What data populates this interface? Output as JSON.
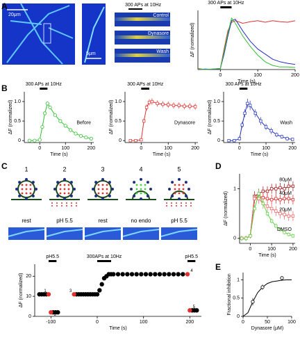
{
  "figure": {
    "panel_labels": [
      "A",
      "B",
      "C",
      "D",
      "E"
    ],
    "scale_bars": [
      "20μm",
      "5μm"
    ],
    "kymograph_stimulus": "300 APs at 10Hz",
    "kymograph_labels": [
      "Control",
      "Dynasore",
      "Wash"
    ],
    "diagram_steps": [
      {
        "number": "1",
        "label": "rest"
      },
      {
        "number": "2",
        "label": "pH 5.5"
      },
      {
        "number": "3",
        "label": "rest"
      },
      {
        "number": "4",
        "label": "no endo"
      },
      {
        "number": "5",
        "label": "pH 5.5"
      }
    ]
  },
  "chart_data": [
    {
      "type": "line",
      "xlabel": "Time (s)",
      "ylabel": "ΔF (normalized)",
      "xlim": [
        -60,
        200
      ],
      "ylim": [
        0,
        1.15
      ],
      "xticks": [
        0,
        100,
        200
      ],
      "stimuli": [
        {
          "text": "300 APs at 10Hz",
          "start": 0,
          "end": 30
        }
      ],
      "x": [
        -60,
        -40,
        -20,
        0,
        10,
        20,
        30,
        40,
        60,
        80,
        100,
        120,
        140,
        160,
        180,
        200
      ],
      "series": [
        {
          "color": "#e03030",
          "line": true,
          "values": [
            0.02,
            0,
            0.01,
            0.02,
            0.4,
            0.75,
            0.92,
            0.95,
            0.9,
            0.93,
            0.95,
            0.92,
            0.95,
            0.93,
            0.92,
            0.95
          ]
        },
        {
          "color": "#2030c0",
          "line": true,
          "values": [
            0,
            0.01,
            0,
            0.02,
            0.3,
            0.65,
            0.95,
            0.98,
            0.75,
            0.55,
            0.4,
            0.3,
            0.2,
            0.15,
            0.12,
            0.1
          ]
        },
        {
          "color": "#30c030",
          "line": true,
          "values": [
            0.01,
            0,
            0.01,
            0.02,
            0.35,
            0.7,
            1.0,
            0.9,
            0.65,
            0.45,
            0.28,
            0.15,
            0.08,
            0.05,
            0.05,
            0.04
          ]
        }
      ]
    },
    {
      "type": "line",
      "label": "Before",
      "xlabel": "Time (s)",
      "ylabel": "ΔF (normalized)",
      "xlim": [
        -60,
        210
      ],
      "ylim": [
        -0.05,
        1.25
      ],
      "xticks": [
        0,
        100,
        200
      ],
      "yticks": [
        0,
        0.5,
        {
          "value": 1,
          "label": "1.0"
        }
      ],
      "stimuli": [
        {
          "text": "300 APs at 10Hz",
          "start": 0,
          "end": 30
        }
      ],
      "x": [
        -40,
        -20,
        0,
        10,
        20,
        30,
        40,
        60,
        80,
        100,
        120,
        140,
        160,
        180,
        200
      ],
      "series": [
        {
          "color": "#30c030",
          "line": true,
          "marker": "circle",
          "values": [
            0,
            0,
            0.02,
            0.35,
            0.7,
            0.95,
            0.85,
            0.65,
            0.5,
            0.38,
            0.27,
            0.18,
            0.12,
            0.08,
            0.05
          ],
          "errors": [
            0.03,
            0.03,
            0.03,
            0.04,
            0.04,
            0.05,
            0.04,
            0.04,
            0.03,
            0.03,
            0.03,
            0.03,
            0.03,
            0.03,
            0.03
          ]
        }
      ]
    },
    {
      "type": "line",
      "label": "Dynasore",
      "xlabel": "Time (s)",
      "ylabel": "ΔF (normalized)",
      "xlim": [
        -60,
        210
      ],
      "ylim": [
        -0.05,
        1.25
      ],
      "xticks": [
        0,
        100,
        200
      ],
      "yticks": [
        0,
        0.5,
        {
          "value": 1,
          "label": "1.0"
        }
      ],
      "stimuli": [
        {
          "text": "300 APs at 10Hz",
          "start": 0,
          "end": 30
        }
      ],
      "x": [
        -40,
        -20,
        0,
        10,
        20,
        30,
        40,
        60,
        80,
        100,
        120,
        140,
        160,
        180,
        200
      ],
      "series": [
        {
          "color": "#e03030",
          "line": true,
          "marker": "square",
          "values": [
            0,
            0,
            0.02,
            0.5,
            0.85,
            0.98,
            1.0,
            0.95,
            0.93,
            0.92,
            0.9,
            0.9,
            0.88,
            0.88,
            0.87
          ],
          "errors": [
            0.03,
            0.03,
            0.04,
            0.06,
            0.08,
            0.08,
            0.08,
            0.08,
            0.08,
            0.08,
            0.08,
            0.08,
            0.08,
            0.08,
            0.08
          ]
        }
      ]
    },
    {
      "type": "line",
      "label": "Wash",
      "xlabel": "Time (s)",
      "ylabel": "ΔF (normalized)",
      "xlim": [
        -60,
        210
      ],
      "ylim": [
        -0.05,
        1.25
      ],
      "xticks": [
        0,
        100,
        200
      ],
      "yticks": [
        0,
        0.5,
        {
          "value": 1,
          "label": "1.0"
        }
      ],
      "stimuli": [
        {
          "text": "300 APs at 10Hz",
          "start": 0,
          "end": 30
        }
      ],
      "x": [
        -40,
        -20,
        0,
        10,
        20,
        30,
        40,
        60,
        80,
        100,
        120,
        140,
        160,
        180,
        200
      ],
      "series": [
        {
          "color": "#2030c0",
          "line": true,
          "marker": "square",
          "values": [
            0,
            0,
            0.05,
            0.4,
            0.7,
            0.95,
            0.9,
            0.7,
            0.5,
            0.35,
            0.25,
            0.15,
            0.1,
            0.05,
            0.03
          ],
          "errors": [
            0.04,
            0.04,
            0.05,
            0.08,
            0.1,
            0.12,
            0.12,
            0.1,
            0.1,
            0.08,
            0.08,
            0.06,
            0.05,
            0.05,
            0.04
          ]
        }
      ]
    },
    {
      "type": "line",
      "xlabel": "Time (s)",
      "ylabel": "ΔF (normalized)",
      "xlim": [
        -50,
        210
      ],
      "ylim": [
        -0.1,
        1.3
      ],
      "xticks": [
        0,
        100,
        200
      ],
      "yticks": [
        0,
        1
      ],
      "x": [
        -40,
        -20,
        0,
        20,
        40,
        60,
        80,
        100,
        120,
        140,
        160,
        180,
        200
      ],
      "series": [
        {
          "name": "80μM",
          "color": "#a01010",
          "line": true,
          "marker": "square",
          "values": [
            0,
            0,
            0.05,
            0.85,
            0.9,
            0.95,
            0.95,
            1.0,
            1.0,
            1.02,
            1.0,
            1.05,
            1.05
          ],
          "errors": [
            0.05,
            0.05,
            0.05,
            0.1,
            0.1,
            0.1,
            0.1,
            0.1,
            0.1,
            0.1,
            0.1,
            0.1,
            0.1
          ]
        },
        {
          "name": "40μM",
          "color": "#e02020",
          "line": true,
          "marker": "square",
          "values": [
            0,
            0,
            0.05,
            0.8,
            0.85,
            0.82,
            0.8,
            0.78,
            0.8,
            0.78,
            0.8,
            0.8,
            0.78
          ],
          "errors": [
            0.05,
            0.05,
            0.05,
            0.1,
            0.1,
            0.1,
            0.1,
            0.1,
            0.1,
            0.1,
            0.1,
            0.1,
            0.1
          ]
        },
        {
          "name": "20μM",
          "color": "#f06060",
          "line": true,
          "marker": "square",
          "values": [
            0,
            0,
            0.05,
            0.8,
            0.8,
            0.7,
            0.65,
            0.6,
            0.55,
            0.5,
            0.48,
            0.45,
            0.45
          ],
          "errors": [
            0.05,
            0.05,
            0.05,
            0.1,
            0.1,
            0.1,
            0.1,
            0.1,
            0.1,
            0.1,
            0.1,
            0.1,
            0.1
          ]
        },
        {
          "name": "DMSO",
          "color": "#60d040",
          "line": true,
          "marker": "square",
          "values": [
            0,
            0,
            0.05,
            0.6,
            0.9,
            0.7,
            0.5,
            0.35,
            0.25,
            0.18,
            0.12,
            0.08,
            0.05
          ],
          "errors": [
            0.05,
            0.05,
            0.05,
            0.08,
            0.08,
            0.08,
            0.06,
            0.05,
            0.05,
            0.04,
            0.04,
            0.04,
            0.04
          ]
        }
      ]
    },
    {
      "type": "scatter",
      "xlabel": "Time (s)",
      "ylabel": "ΔF (normalized)",
      "xlim": [
        -135,
        225
      ],
      "ylim": [
        0,
        26
      ],
      "xticks": [
        -100,
        0,
        100,
        200
      ],
      "yticks": [
        0,
        10,
        20
      ],
      "stimuli": [
        {
          "text": "pH5.5",
          "start": -105,
          "end": -88
        },
        {
          "text": "300APs at 10Hz",
          "start": 0,
          "end": 30
        },
        {
          "text": "pH5.5",
          "start": 195,
          "end": 212
        }
      ],
      "series": [
        {
          "color": "#000000",
          "line": false,
          "marker": "dot",
          "x": [
            -125,
            -120,
            -115,
            -110,
            -95,
            -90,
            -85,
            -45,
            -40,
            -35,
            -30,
            -25,
            -20,
            -15,
            -10,
            -5,
            0,
            5,
            10,
            15,
            20,
            25,
            30,
            35,
            45,
            55,
            65,
            75,
            85,
            95,
            105,
            115,
            125,
            135,
            145,
            155,
            165,
            175,
            185,
            205,
            210,
            215
          ],
          "values": [
            11,
            11,
            11,
            11,
            2,
            2,
            2,
            11,
            11,
            11,
            11,
            11,
            11,
            11,
            11,
            11,
            11,
            13,
            16,
            19,
            20,
            21,
            21,
            21,
            21,
            21,
            21,
            21,
            21,
            21,
            21,
            21,
            21,
            21,
            21,
            21,
            21,
            21,
            21,
            3,
            3,
            3
          ]
        },
        {
          "color": "#e03030",
          "line": false,
          "marker": "dot",
          "x": [
            -105,
            -100,
            -50,
            195,
            200
          ],
          "values": [
            11,
            2,
            11,
            21,
            3
          ],
          "point_labels": [
            "1",
            "2",
            "3",
            "4",
            "5"
          ]
        }
      ]
    },
    {
      "type": "scatter",
      "xlabel": "Dynasore (μM)",
      "ylabel": "Fractional inhibition",
      "xlim": [
        0,
        100
      ],
      "ylim": [
        0,
        1.2
      ],
      "xticks": [
        0,
        50,
        100
      ],
      "yticks": [
        0,
        0.5,
        1
      ],
      "series": [
        {
          "color": "#000000",
          "line": true,
          "x": [
            0,
            10,
            20,
            30,
            40,
            50,
            60,
            70,
            80,
            90,
            100
          ],
          "values": [
            0,
            0.1,
            0.4,
            0.65,
            0.8,
            0.9,
            0.95,
            0.97,
            0.99,
            1,
            1
          ]
        },
        {
          "color": "#000000",
          "line": false,
          "marker": "circle",
          "x": [
            20,
            40,
            80
          ],
          "values": [
            0.4,
            0.8,
            1.05
          ],
          "errors": [
            0.1,
            0.07,
            0.05
          ]
        }
      ]
    }
  ]
}
